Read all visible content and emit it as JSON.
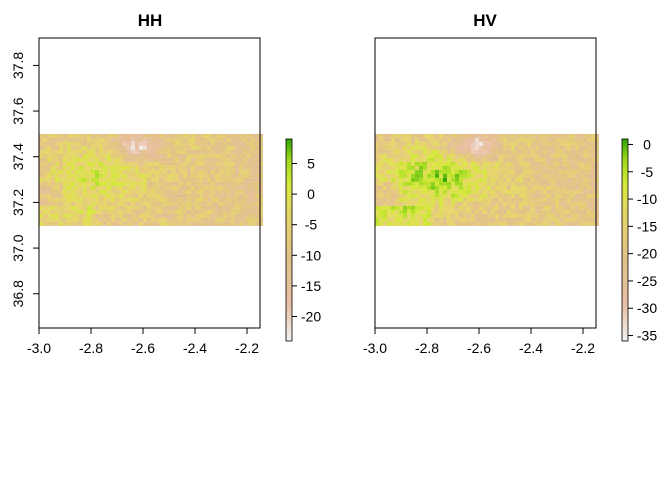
{
  "chart_data": [
    {
      "type": "heatmap",
      "title": "HH",
      "xlabel": "",
      "ylabel": "",
      "xlim": [
        -3.0,
        -2.15
      ],
      "ylim": [
        36.65,
        37.92
      ],
      "xticks": [
        "-3.0",
        "-2.8",
        "-2.6",
        "-2.4",
        "-2.2"
      ],
      "yticks": [
        "36.8",
        "37.0",
        "37.2",
        "37.4",
        "37.6",
        "37.8"
      ],
      "raster_extent": {
        "x": [
          -3.0,
          -2.15
        ],
        "y": [
          37.1,
          37.5
        ]
      },
      "legend": {
        "position": "right",
        "range": [
          -24,
          9
        ],
        "ticks": [
          "5",
          "0",
          "-5",
          "-10",
          "-15",
          "-20"
        ],
        "colors": [
          "#f2f2f2",
          "#e9bfa6",
          "#e3c08a",
          "#e6d66a",
          "#d6e83a",
          "#9ad81c",
          "#2ea304"
        ]
      }
    },
    {
      "type": "heatmap",
      "title": "HV",
      "xlabel": "",
      "ylabel": "",
      "xlim": [
        -3.0,
        -2.15
      ],
      "ylim": [
        36.65,
        37.92
      ],
      "xticks": [
        "-3.0",
        "-2.8",
        "-2.6",
        "-2.4",
        "-2.2"
      ],
      "yticks": [],
      "raster_extent": {
        "x": [
          -3.0,
          -2.15
        ],
        "y": [
          37.1,
          37.5
        ]
      },
      "legend": {
        "position": "right",
        "range": [
          -36,
          1
        ],
        "ticks": [
          "0",
          "-5",
          "-10",
          "-15",
          "-20",
          "-25",
          "-30",
          "-35"
        ],
        "colors": [
          "#f2f2f2",
          "#e9bfa6",
          "#e3c08a",
          "#e6d66a",
          "#d6e83a",
          "#9ad81c",
          "#2ea304"
        ]
      }
    }
  ]
}
